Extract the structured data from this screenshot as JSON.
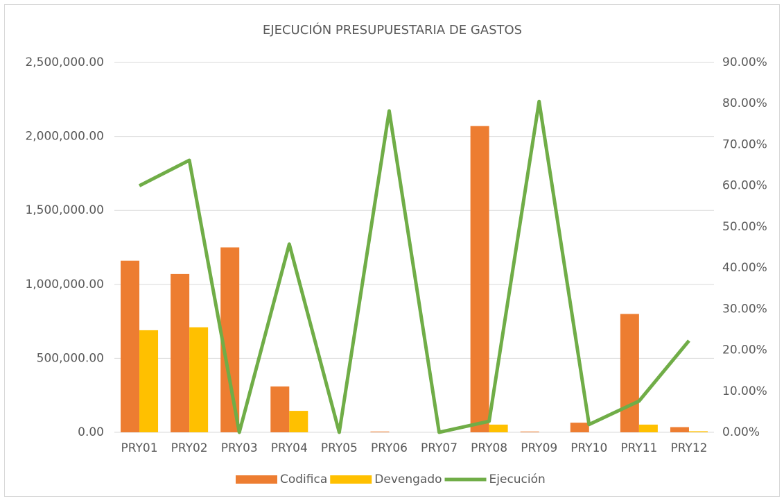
{
  "chart_data": {
    "type": "bar-line",
    "title": "EJECUCIÓN PRESUPUESTARIA DE GASTOS",
    "categories": [
      "PRY01",
      "PRY02",
      "PRY03",
      "PRY04",
      "PRY05",
      "PRY06",
      "PRY07",
      "PRY08",
      "PRY09",
      "PRY10",
      "PRY11",
      "PRY12"
    ],
    "series": [
      {
        "name": "Codifica",
        "type": "bar",
        "color": "#ed7d31",
        "values": [
          1160000,
          1070000,
          1250000,
          310000,
          0,
          5000,
          0,
          2070000,
          5000,
          65000,
          800000,
          35000
        ]
      },
      {
        "name": "Devengado",
        "type": "bar",
        "color": "#ffc000",
        "values": [
          690000,
          710000,
          0,
          145000,
          0,
          0,
          0,
          52000,
          0,
          0,
          52000,
          7000
        ]
      },
      {
        "name": "Ejecución",
        "type": "line",
        "axis": "y2",
        "color": "#70ad47",
        "values": [
          60,
          66.2,
          0,
          45.8,
          0,
          78.2,
          0,
          2.7,
          80.5,
          1.9,
          7.6,
          22.3
        ]
      }
    ],
    "ylim": [
      0,
      2500000
    ],
    "yticks": [
      {
        "value": 0,
        "label": "0.00"
      },
      {
        "value": 500000,
        "label": "500,000.00"
      },
      {
        "value": 1000000,
        "label": "1,000,000.00"
      },
      {
        "value": 1500000,
        "label": "1,500,000.00"
      },
      {
        "value": 2000000,
        "label": "2,000,000.00"
      },
      {
        "value": 2500000,
        "label": "2,500,000.00"
      }
    ],
    "y2lim": [
      0,
      90
    ],
    "y2ticks": [
      {
        "value": 0,
        "label": "0.00%"
      },
      {
        "value": 10,
        "label": "10.00%"
      },
      {
        "value": 20,
        "label": "20.00%"
      },
      {
        "value": 30,
        "label": "30.00%"
      },
      {
        "value": 40,
        "label": "40.00%"
      },
      {
        "value": 50,
        "label": "50.00%"
      },
      {
        "value": 60,
        "label": "60.00%"
      },
      {
        "value": 70,
        "label": "70.00%"
      },
      {
        "value": 80,
        "label": "80.00%"
      },
      {
        "value": 90,
        "label": "90.00%"
      }
    ],
    "grid": true,
    "legend": "bottom"
  }
}
